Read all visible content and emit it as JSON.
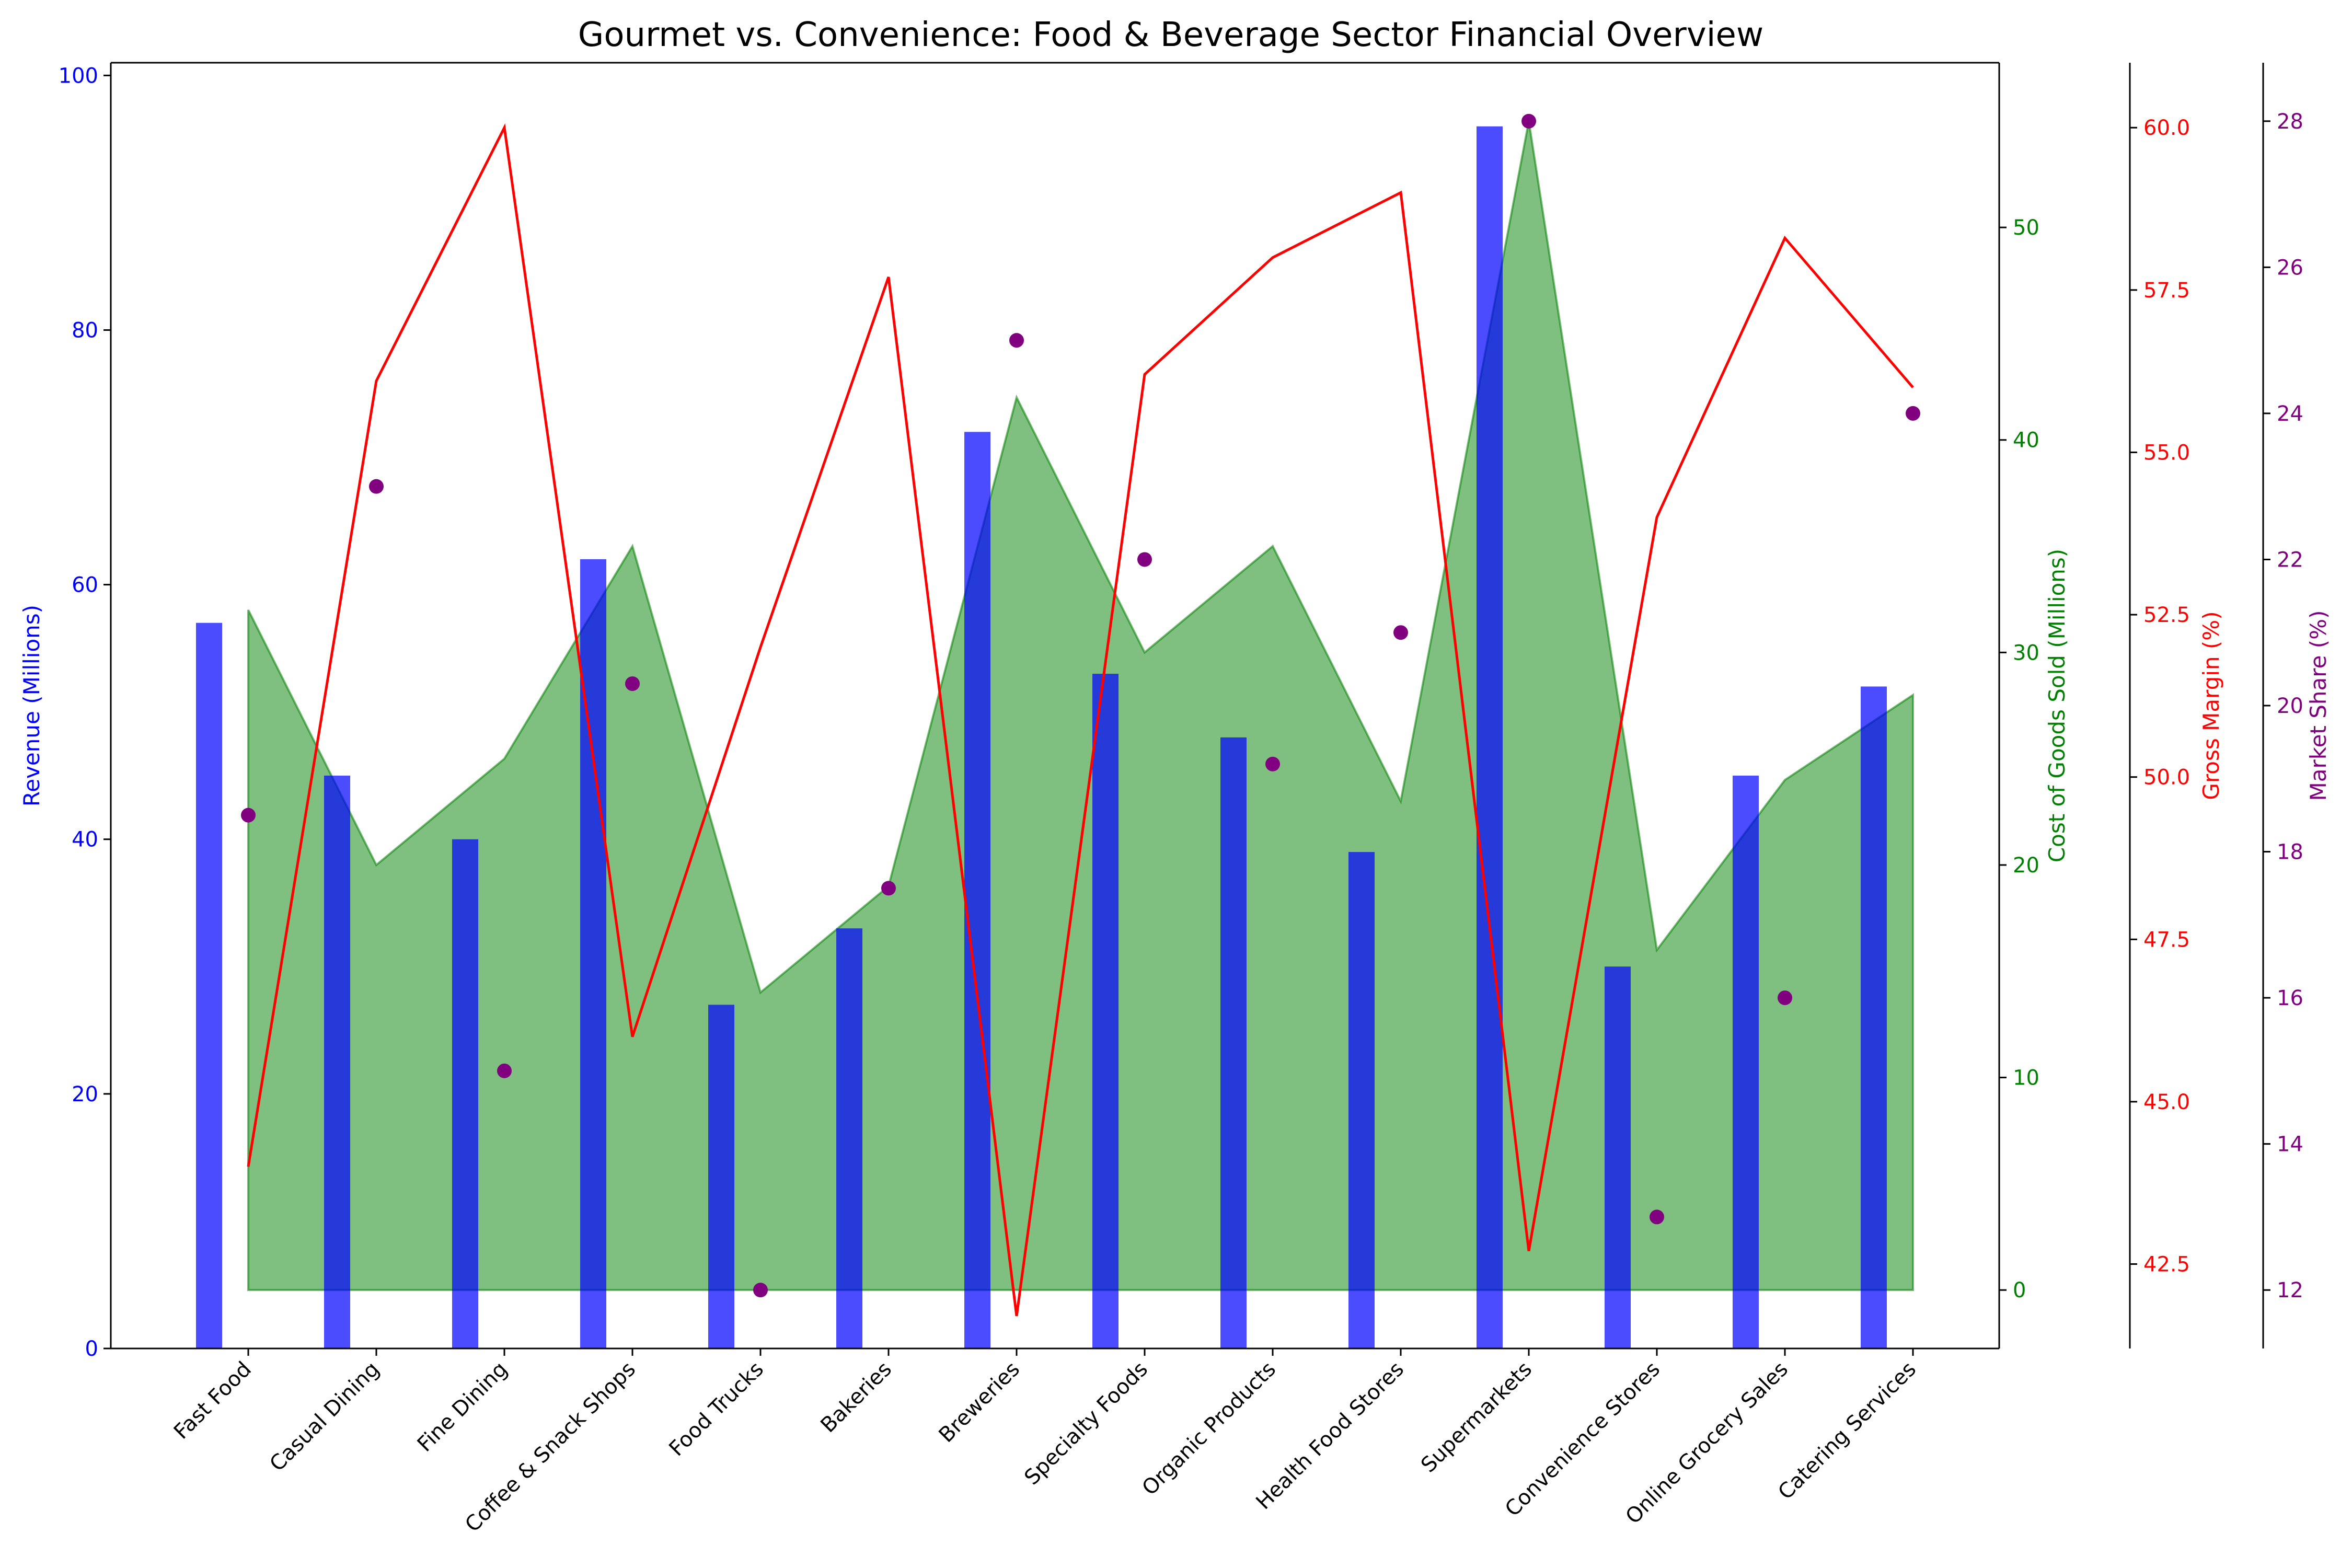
{
  "chart_data": {
    "type": "bar",
    "title": "Gourmet vs. Convenience: Food & Beverage Sector Financial Overview",
    "categories": [
      "Fast Food",
      "Casual Dining",
      "Fine Dining",
      "Coffee & Snack Shops",
      "Food Trucks",
      "Bakeries",
      "Breweries",
      "Specialty Foods",
      "Organic Products",
      "Health Food Stores",
      "Supermarkets",
      "Convenience Stores",
      "Online Grocery Sales",
      "Catering Services"
    ],
    "series": [
      {
        "name": "Revenue (Millions)",
        "type": "bar",
        "axis": "revenue",
        "color": "#0000ff",
        "values": [
          57,
          45,
          40,
          62,
          27,
          33,
          72,
          53,
          48,
          39,
          96,
          30,
          45,
          52
        ]
      },
      {
        "name": "Cost of Goods Sold (Millions)",
        "type": "area",
        "axis": "cogs",
        "color": "#008000",
        "values": [
          32,
          20,
          25,
          35,
          14,
          19,
          42,
          30,
          35,
          23,
          55,
          16,
          24,
          28
        ]
      },
      {
        "name": "Gross Margin (%)",
        "type": "line",
        "axis": "margin",
        "color": "#ff0000",
        "values": [
          44.0,
          56.1,
          60.0,
          46.0,
          52.0,
          57.7,
          41.7,
          56.2,
          58.0,
          59.0,
          42.7,
          54.0,
          58.3,
          56.0
        ]
      },
      {
        "name": "Market Share (%)",
        "type": "scatter",
        "axis": "share",
        "color": "#800080",
        "values": [
          18.5,
          23,
          15,
          20.3,
          12,
          17.5,
          25,
          22,
          19.2,
          21,
          28,
          13,
          16,
          24
        ]
      }
    ],
    "axes": {
      "revenue": {
        "label": "Revenue (Millions)",
        "color": "#0000ff",
        "ylim": [
          0,
          101
        ],
        "ticks": [
          0,
          20,
          40,
          60,
          80,
          100
        ]
      },
      "cogs": {
        "label": "Cost of Goods Sold (Millions)",
        "color": "#008000",
        "ylim": [
          -2.75,
          57.75
        ],
        "ticks": [
          0,
          10,
          20,
          30,
          40,
          50
        ]
      },
      "margin": {
        "label": "Gross Margin (%)",
        "color": "#ff0000",
        "ylim": [
          41.2,
          61.0
        ],
        "ticks": [
          "42.5",
          "45.0",
          "47.5",
          "50.0",
          "52.5",
          "55.0",
          "57.5",
          "60.0"
        ]
      },
      "share": {
        "label": "Market Share (%)",
        "color": "#800080",
        "ylim": [
          11.2,
          28.8
        ],
        "ticks": [
          12,
          14,
          16,
          18,
          20,
          22,
          24,
          26,
          28
        ]
      }
    },
    "grid": false,
    "legend": "none"
  }
}
